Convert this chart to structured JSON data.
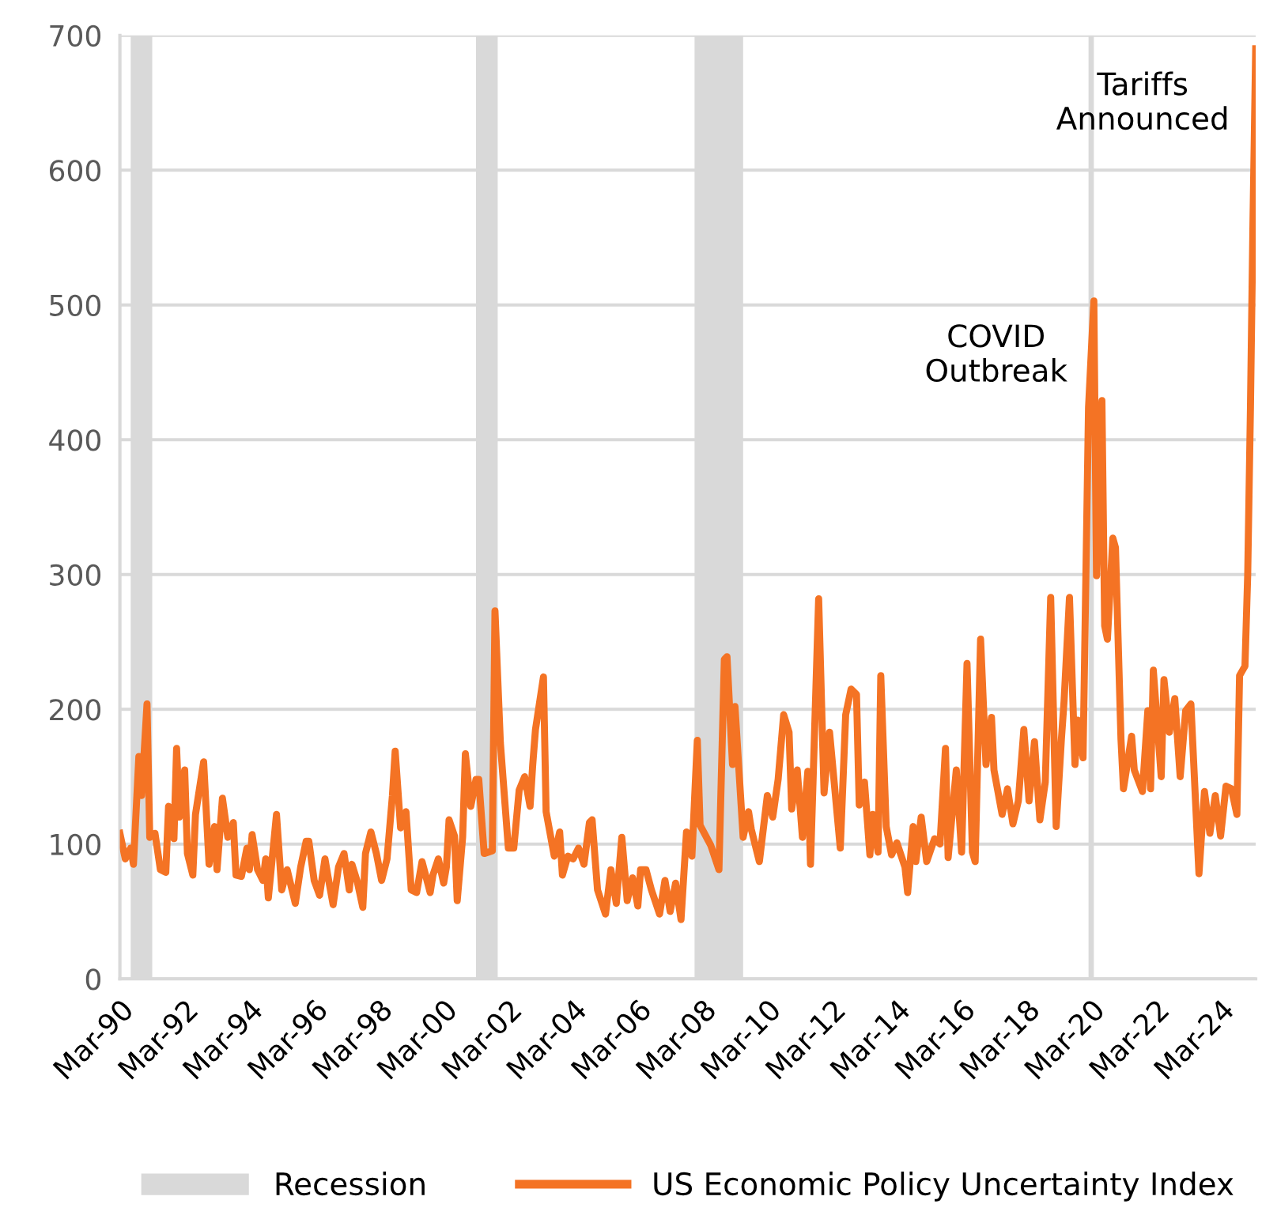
{
  "chart_data": {
    "type": "line",
    "x": [
      "1990-03",
      "1990-05",
      "1990-07",
      "1990-08",
      "1990-10",
      "1990-11",
      "1991-01",
      "1991-02",
      "1991-04",
      "1991-06",
      "1991-08",
      "1991-09",
      "1991-11",
      "1991-12",
      "1992-01",
      "1992-03",
      "1992-04",
      "1992-06",
      "1992-07",
      "1992-10",
      "1992-12",
      "1993-02",
      "1993-03",
      "1993-05",
      "1993-07",
      "1993-09",
      "1993-10",
      "1993-12",
      "1994-02",
      "1994-03",
      "1994-04",
      "1994-06",
      "1994-08",
      "1994-09",
      "1994-10",
      "1995-01",
      "1995-03",
      "1995-05",
      "1995-08",
      "1995-10",
      "1995-12",
      "1996-01",
      "1996-03",
      "1996-05",
      "1996-07",
      "1996-08",
      "1996-10",
      "1996-12",
      "1997-02",
      "1997-04",
      "1997-05",
      "1997-07",
      "1997-09",
      "1997-10",
      "1997-12",
      "1998-02",
      "1998-04",
      "1998-06",
      "1998-08",
      "1998-09",
      "1998-11",
      "1999-01",
      "1999-03",
      "1999-05",
      "1999-07",
      "1999-10",
      "1999-11",
      "2000-01",
      "2000-03",
      "2000-04",
      "2000-05",
      "2000-07",
      "2000-08",
      "2000-10",
      "2000-11",
      "2001-01",
      "2001-03",
      "2001-04",
      "2001-06",
      "2001-09",
      "2001-10",
      "2001-12",
      "2002-01",
      "2002-03",
      "2002-05",
      "2002-07",
      "2002-09",
      "2002-11",
      "2002-12",
      "2003-01",
      "2003-04",
      "2003-05",
      "2003-08",
      "2003-10",
      "2003-11",
      "2004-01",
      "2004-03",
      "2004-05",
      "2004-07",
      "2004-09",
      "2004-10",
      "2004-12",
      "2005-03",
      "2005-05",
      "2005-07",
      "2005-09",
      "2005-11",
      "2006-01",
      "2006-03",
      "2006-04",
      "2006-06",
      "2006-08",
      "2006-11",
      "2007-01",
      "2007-03",
      "2007-05",
      "2007-07",
      "2007-09",
      "2007-11",
      "2008-01",
      "2008-02",
      "2008-06",
      "2008-09",
      "2008-11",
      "2008-12",
      "2009-02",
      "2009-03",
      "2009-06",
      "2009-08",
      "2009-09",
      "2009-12",
      "2010-03",
      "2010-05",
      "2010-07",
      "2010-09",
      "2010-11",
      "2010-12",
      "2011-02",
      "2011-04",
      "2011-06",
      "2011-07",
      "2011-10",
      "2011-12",
      "2012-02",
      "2012-06",
      "2012-08",
      "2012-10",
      "2012-12",
      "2013-01",
      "2013-03",
      "2013-05",
      "2013-06",
      "2013-08",
      "2013-09",
      "2013-11",
      "2014-01",
      "2014-03",
      "2014-06",
      "2014-07",
      "2014-09",
      "2014-10",
      "2014-12",
      "2015-02",
      "2015-05",
      "2015-07",
      "2015-09",
      "2015-10",
      "2016-01",
      "2016-03",
      "2016-05",
      "2016-07",
      "2016-08",
      "2016-10",
      "2016-12",
      "2017-02",
      "2017-03",
      "2017-06",
      "2017-08",
      "2017-10",
      "2017-12",
      "2018-02",
      "2018-04",
      "2018-06",
      "2018-08",
      "2018-10",
      "2018-12",
      "2019-02",
      "2019-04",
      "2019-05",
      "2019-07",
      "2019-09",
      "2019-10",
      "2019-12",
      "2020-02",
      "2020-04",
      "2020-05",
      "2020-07",
      "2020-08",
      "2020-09",
      "2020-11",
      "2020-12",
      "2021-02",
      "2021-03",
      "2021-06",
      "2021-07",
      "2021-10",
      "2021-12",
      "2022-01",
      "2022-02",
      "2022-05",
      "2022-06",
      "2022-08",
      "2022-10",
      "2022-12",
      "2023-02",
      "2023-04",
      "2023-07",
      "2023-09",
      "2023-11",
      "2024-01",
      "2024-03",
      "2024-05",
      "2024-07",
      "2024-09",
      "2024-10",
      "2024-12",
      "2025-01",
      "2025-02",
      "2025-03",
      "2025-04"
    ],
    "series": [
      {
        "name": "US Economic Policy Uncertainty Index",
        "color": "#f47324",
        "values": [
          108,
          89,
          97,
          85,
          165,
          136,
          204,
          105,
          108,
          81,
          79,
          128,
          104,
          171,
          120,
          155,
          93,
          77,
          122,
          161,
          85,
          113,
          81,
          134,
          105,
          116,
          77,
          76,
          97,
          81,
          107,
          81,
          73,
          89,
          60,
          122,
          66,
          81,
          56,
          83,
          102,
          102,
          73,
          62,
          89,
          77,
          55,
          83,
          93,
          66,
          85,
          72,
          53,
          93,
          109,
          93,
          73,
          89,
          136,
          169,
          112,
          124,
          66,
          64,
          87,
          64,
          77,
          89,
          71,
          83,
          118,
          106,
          58,
          105,
          167,
          128,
          148,
          148,
          93,
          95,
          273,
          175,
          148,
          97,
          97,
          140,
          150,
          128,
          159,
          185,
          224,
          124,
          91,
          109,
          77,
          91,
          89,
          97,
          85,
          116,
          118,
          66,
          48,
          81,
          56,
          105,
          58,
          75,
          54,
          81,
          81,
          66,
          48,
          73,
          50,
          71,
          44,
          109,
          91,
          177,
          114,
          99,
          81,
          237,
          239,
          159,
          202,
          105,
          124,
          111,
          87,
          136,
          120,
          148,
          196,
          183,
          126,
          155,
          105,
          154,
          85,
          282,
          138,
          183,
          97,
          196,
          215,
          211,
          129,
          146,
          92,
          122,
          94,
          225,
          113,
          92,
          101,
          83,
          64,
          113,
          87,
          120,
          87,
          104,
          100,
          171,
          90,
          155,
          94,
          234,
          94,
          87,
          252,
          159,
          194,
          155,
          122,
          141,
          115,
          132,
          185,
          132,
          176,
          118,
          146,
          283,
          113,
          178,
          206,
          283,
          159,
          192,
          164,
          424,
          503,
          299,
          429,
          262,
          252,
          327,
          320,
          178,
          141,
          180,
          155,
          139,
          199,
          141,
          229,
          150,
          222,
          183,
          208,
          150,
          199,
          204,
          78,
          139,
          108,
          136,
          106,
          143,
          141,
          122,
          225,
          232,
          300,
          424,
          560,
          690
        ]
      }
    ],
    "xlim": [
      "1990-03",
      "2025-04"
    ],
    "xticks": [
      {
        "value": "1990-03",
        "label": "Mar-90"
      },
      {
        "value": "1992-03",
        "label": "Mar-92"
      },
      {
        "value": "1994-03",
        "label": "Mar-94"
      },
      {
        "value": "1996-03",
        "label": "Mar-96"
      },
      {
        "value": "1998-03",
        "label": "Mar-98"
      },
      {
        "value": "2000-03",
        "label": "Mar-00"
      },
      {
        "value": "2002-03",
        "label": "Mar-02"
      },
      {
        "value": "2004-03",
        "label": "Mar-04"
      },
      {
        "value": "2006-03",
        "label": "Mar-06"
      },
      {
        "value": "2008-03",
        "label": "Mar-08"
      },
      {
        "value": "2010-03",
        "label": "Mar-10"
      },
      {
        "value": "2012-03",
        "label": "Mar-12"
      },
      {
        "value": "2014-03",
        "label": "Mar-14"
      },
      {
        "value": "2016-03",
        "label": "Mar-16"
      },
      {
        "value": "2018-03",
        "label": "Mar-18"
      },
      {
        "value": "2020-03",
        "label": "Mar-20"
      },
      {
        "value": "2022-03",
        "label": "Mar-22"
      },
      {
        "value": "2024-03",
        "label": "Mar-24"
      }
    ],
    "ylim": [
      0,
      700
    ],
    "yticks": [
      0,
      100,
      200,
      300,
      400,
      500,
      600,
      700
    ],
    "grid": "y",
    "legend": "bottom",
    "line_style": "solid",
    "bands": [
      {
        "axis": "x",
        "from": "1990-07",
        "to": "1991-03",
        "label": "Recession",
        "color": "#d9d9d9"
      },
      {
        "axis": "x",
        "from": "2001-03",
        "to": "2001-11",
        "color": "#d9d9d9"
      },
      {
        "axis": "x",
        "from": "2007-12",
        "to": "2009-06",
        "color": "#d9d9d9"
      },
      {
        "axis": "x",
        "from": "2020-02",
        "to": "2020-04",
        "color": "#d9d9d9"
      }
    ],
    "annotations": [
      {
        "text": "COVID\nOutbreak",
        "x": "2020-04",
        "y": 503
      },
      {
        "text": "Tariffs\nAnnounced",
        "x": "2025-04",
        "y": 690
      }
    ]
  }
}
